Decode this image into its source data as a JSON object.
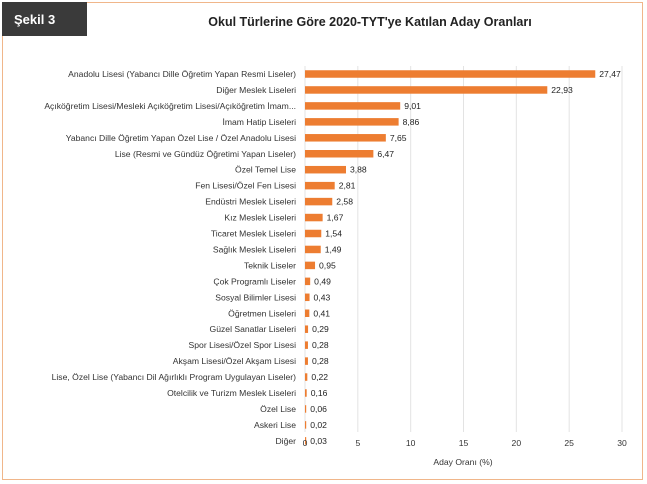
{
  "figure": {
    "badge": "Şekil 3"
  },
  "chart_data": {
    "type": "bar",
    "orientation": "horizontal",
    "title": "Okul Türlerine Göre 2020-TYT'ye Katılan Aday Oranları",
    "xlabel": "Aday Oranı (%)",
    "xlim": [
      0,
      30
    ],
    "xticks": [
      0,
      5,
      10,
      15,
      20,
      25,
      30
    ],
    "bar_color": "#ed7d31",
    "categories": [
      "Anadolu Lisesi (Yabancı Dille Öğretim Yapan Resmi Liseler)",
      "Diğer Meslek Liseleri",
      "Açıköğretim Lisesi/Mesleki Açıköğretim Lisesi/Açıköğretim İmam...",
      "İmam Hatip Liseleri",
      "Yabancı Dille Öğretim Yapan Özel Lise / Özel Anadolu Lisesi",
      "Lise (Resmi ve Gündüz Öğretimi Yapan Liseler)",
      "Özel Temel Lise",
      "Fen Lisesi/Özel Fen Lisesi",
      "Endüstri Meslek Liseleri",
      "Kız Meslek Liseleri",
      "Ticaret Meslek Liseleri",
      "Sağlık Meslek Liseleri",
      "Teknik Liseler",
      "Çok Programlı Liseler",
      "Sosyal Bilimler Lisesi",
      "Öğretmen Liseleri",
      "Güzel Sanatlar Liseleri",
      "Spor Lisesi/Özel Spor Lisesi",
      "Akşam Lisesi/Özel Akşam Lisesi",
      "Lise, Özel Lise (Yabancı Dil Ağırlıklı Program Uygulayan Liseler)",
      "Otelcilik ve Turizm Meslek Liseleri",
      "Özel Lise",
      "Askeri Lise",
      "Diğer"
    ],
    "values": [
      27.47,
      22.93,
      9.01,
      8.86,
      7.65,
      6.47,
      3.88,
      2.81,
      2.58,
      1.67,
      1.54,
      1.49,
      0.95,
      0.49,
      0.43,
      0.41,
      0.29,
      0.28,
      0.28,
      0.22,
      0.16,
      0.06,
      0.02,
      0.03
    ],
    "value_labels": [
      "27,47",
      "22,93",
      "9,01",
      "8,86",
      "7,65",
      "6,47",
      "3,88",
      "2,81",
      "2,58",
      "1,67",
      "1,54",
      "1,49",
      "0,95",
      "0,49",
      "0,43",
      "0,41",
      "0,29",
      "0,28",
      "0,28",
      "0,22",
      "0,16",
      "0,06",
      "0,02",
      "0,03"
    ]
  }
}
